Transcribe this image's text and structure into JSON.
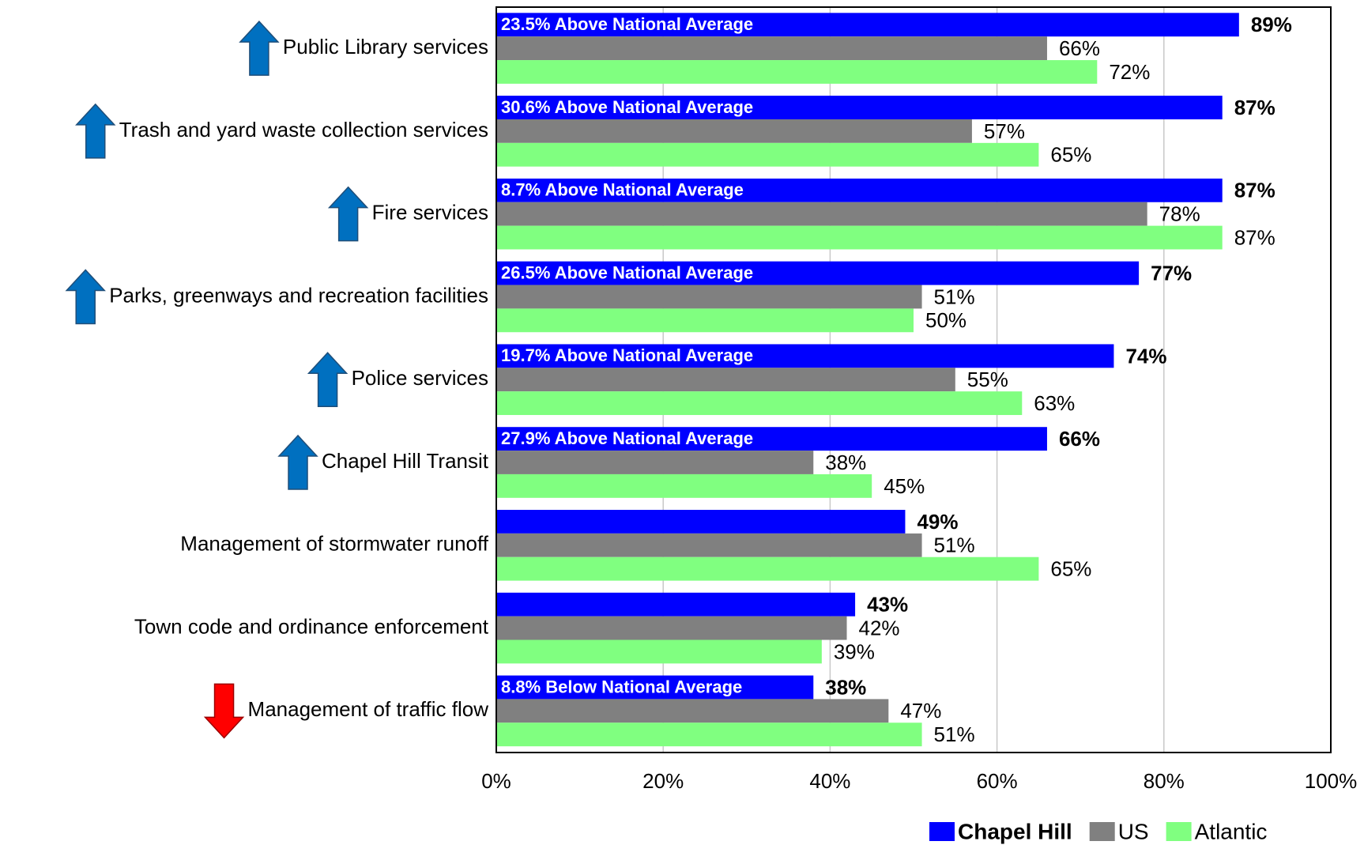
{
  "chart_data": {
    "type": "bar",
    "orientation": "horizontal",
    "categories": [
      "Public Library services",
      "Trash and yard waste collection services",
      "Fire services",
      "Parks, greenways and recreation facilities",
      "Police services",
      "Chapel Hill Transit",
      "Management of stormwater runoff",
      "Town code and ordinance enforcement",
      "Management of traffic flow"
    ],
    "arrows": [
      "up",
      "up",
      "up",
      "up",
      "up",
      "up",
      null,
      null,
      "down"
    ],
    "annotations": [
      "23.5% Above National Average",
      "30.6% Above National Average",
      "8.7% Above National Average",
      "26.5% Above National Average",
      "19.7% Above National Average",
      "27.9% Above National Average",
      null,
      null,
      "8.8% Below National Average"
    ],
    "series": [
      {
        "name": "Chapel Hill",
        "color": "#0000ff",
        "values": [
          89,
          87,
          87,
          77,
          74,
          66,
          49,
          43,
          38
        ],
        "value_labels": [
          "89%",
          "87%",
          "87%",
          "77%",
          "74%",
          "66%",
          "49%",
          "43%",
          "38%"
        ]
      },
      {
        "name": "US",
        "color": "#808080",
        "values": [
          66,
          57,
          78,
          51,
          55,
          38,
          51,
          42,
          47
        ],
        "value_labels": [
          "66%",
          "57%",
          "78%",
          "51%",
          "55%",
          "38%",
          "51%",
          "42%",
          "47%"
        ]
      },
      {
        "name": "Atlantic",
        "color": "#80ff80",
        "values": [
          72,
          65,
          87,
          50,
          63,
          45,
          65,
          39,
          51
        ],
        "value_labels": [
          "72%",
          "65%",
          "87%",
          "50%",
          "63%",
          "45%",
          "65%",
          "39%",
          "51%"
        ]
      }
    ],
    "xlim": [
      0,
      100
    ],
    "xticks": [
      {
        "value": 0,
        "label": "0%"
      },
      {
        "value": 20,
        "label": "20%"
      },
      {
        "value": 40,
        "label": "40%"
      },
      {
        "value": 60,
        "label": "60%"
      },
      {
        "value": 80,
        "label": "80%"
      },
      {
        "value": 100,
        "label": "100%"
      }
    ],
    "grid": true,
    "legend": "bottom-right"
  }
}
